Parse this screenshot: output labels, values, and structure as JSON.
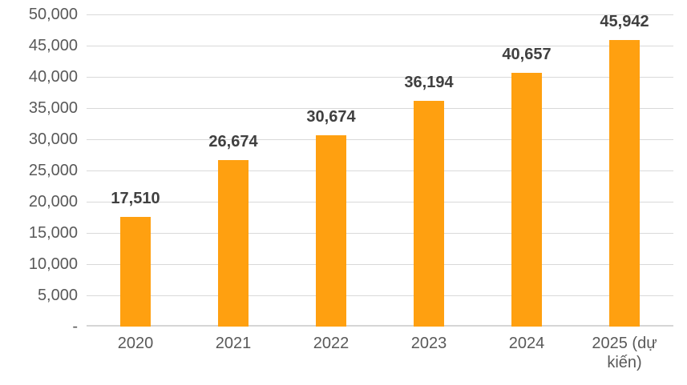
{
  "chart_data": {
    "type": "bar",
    "title": "",
    "xlabel": "",
    "ylabel": "",
    "categories": [
      "2020",
      "2021",
      "2022",
      "2023",
      "2024",
      "2025 (dự kiến)"
    ],
    "values": [
      17510,
      26674,
      30674,
      36194,
      40657,
      45942
    ],
    "value_labels": [
      "17,510",
      "26,674",
      "30,674",
      "36,194",
      "40,657",
      "45,942"
    ],
    "ylim": [
      0,
      50000
    ],
    "y_tick_step": 5000,
    "y_ticks": [
      {
        "value": 50000,
        "label": "50,000"
      },
      {
        "value": 45000,
        "label": "45,000"
      },
      {
        "value": 40000,
        "label": "40,000"
      },
      {
        "value": 35000,
        "label": "35,000"
      },
      {
        "value": 30000,
        "label": "30,000"
      },
      {
        "value": 25000,
        "label": "25,000"
      },
      {
        "value": 20000,
        "label": "20,000"
      },
      {
        "value": 15000,
        "label": "15,000"
      },
      {
        "value": 10000,
        "label": "10,000"
      },
      {
        "value": 5000,
        "label": "5,000"
      },
      {
        "value": 0,
        "label": "-"
      }
    ],
    "grid": true,
    "legend": false,
    "colors": {
      "bar": "#FFA010",
      "data_label": "#404040",
      "axis_text": "#595959",
      "gridline": "#D9D9D9",
      "axis_line": "#D6D6D6",
      "background": "#FFFFFF"
    }
  }
}
